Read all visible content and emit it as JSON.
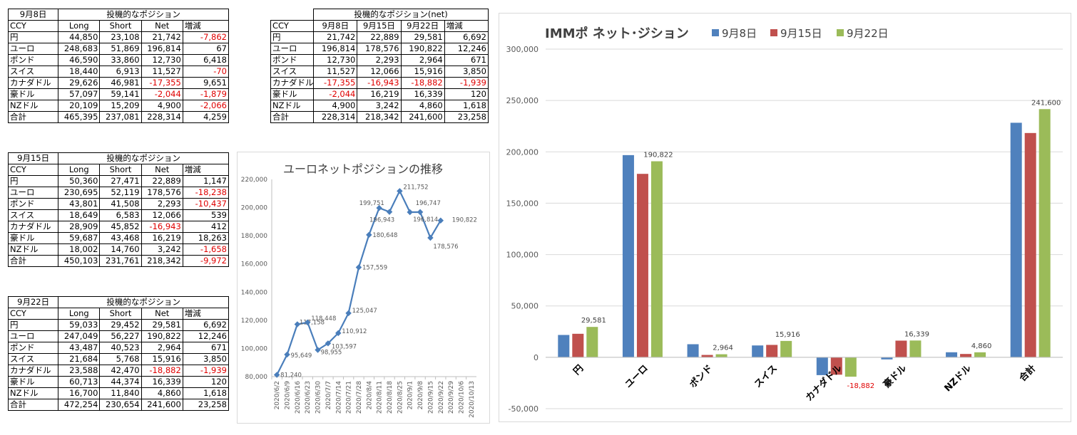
{
  "tables": {
    "sep8": {
      "date": "9月8日",
      "title": "投機的なポジション",
      "headers": [
        "CCY",
        "Long",
        "Short",
        "Net",
        "増減"
      ],
      "rows": [
        [
          "円",
          "44,850",
          "23,108",
          "21,742",
          "-7,862"
        ],
        [
          "ユーロ",
          "248,683",
          "51,869",
          "196,814",
          "67"
        ],
        [
          "ポンド",
          "46,590",
          "33,860",
          "12,730",
          "6,418"
        ],
        [
          "スイス",
          "18,440",
          "6,913",
          "11,527",
          "-70"
        ],
        [
          "カナダドル",
          "29,626",
          "46,981",
          "-17,355",
          "9,651"
        ],
        [
          "豪ドル",
          "57,097",
          "59,141",
          "-2,044",
          "-1,879"
        ],
        [
          "NZドル",
          "20,109",
          "15,209",
          "4,900",
          "-2,066"
        ],
        [
          "合計",
          "465,395",
          "237,081",
          "228,314",
          "4,259"
        ]
      ]
    },
    "sep15": {
      "date": "9月15日",
      "title": "投機的なポジション",
      "headers": [
        "CCY",
        "Long",
        "Short",
        "Net",
        "増減"
      ],
      "rows": [
        [
          "円",
          "50,360",
          "27,471",
          "22,889",
          "1,147"
        ],
        [
          "ユーロ",
          "230,695",
          "52,119",
          "178,576",
          "-18,238"
        ],
        [
          "ポンド",
          "43,801",
          "41,508",
          "2,293",
          "-10,437"
        ],
        [
          "スイス",
          "18,649",
          "6,583",
          "12,066",
          "539"
        ],
        [
          "カナダドル",
          "28,909",
          "45,852",
          "-16,943",
          "412"
        ],
        [
          "豪ドル",
          "59,687",
          "43,468",
          "16,219",
          "18,263"
        ],
        [
          "NZドル",
          "18,002",
          "14,760",
          "3,242",
          "-1,658"
        ],
        [
          "合計",
          "450,103",
          "231,761",
          "218,342",
          "-9,972"
        ]
      ]
    },
    "sep22": {
      "date": "9月22日",
      "title": "投機的なポジション",
      "headers": [
        "CCY",
        "Long",
        "Short",
        "Net",
        "増減"
      ],
      "rows": [
        [
          "円",
          "59,033",
          "29,452",
          "29,581",
          "6,692"
        ],
        [
          "ユーロ",
          "247,049",
          "56,227",
          "190,822",
          "12,246"
        ],
        [
          "ポンド",
          "43,487",
          "40,523",
          "2,964",
          "671"
        ],
        [
          "スイス",
          "21,684",
          "5,768",
          "15,916",
          "3,850"
        ],
        [
          "カナダドル",
          "23,588",
          "42,470",
          "-18,882",
          "-1,939"
        ],
        [
          "豪ドル",
          "60,713",
          "44,374",
          "16,339",
          "120"
        ],
        [
          "NZドル",
          "16,700",
          "11,840",
          "4,860",
          "1,618"
        ],
        [
          "合計",
          "472,254",
          "230,654",
          "241,600",
          "23,258"
        ]
      ]
    },
    "net": {
      "title": "投機的なポジション(net)",
      "headers": [
        "CCY",
        "9月8日",
        "9月15日",
        "9月22日",
        "増減"
      ],
      "rows": [
        [
          "円",
          "21,742",
          "22,889",
          "29,581",
          "6,692"
        ],
        [
          "ユーロ",
          "196,814",
          "178,576",
          "190,822",
          "12,246"
        ],
        [
          "ポンド",
          "12,730",
          "2,293",
          "2,964",
          "671"
        ],
        [
          "スイス",
          "11,527",
          "12,066",
          "15,916",
          "3,850"
        ],
        [
          "カナダドル",
          "-17,355",
          "-16,943",
          "-18,882",
          "-1,939"
        ],
        [
          "豪ドル",
          "-2,044",
          "16,219",
          "16,339",
          "120"
        ],
        [
          "NZドル",
          "4,900",
          "3,242",
          "4,860",
          "1,618"
        ],
        [
          "合計",
          "228,314",
          "218,342",
          "241,600",
          "23,258"
        ]
      ]
    }
  },
  "chart_data": [
    {
      "type": "line",
      "title": "ユーロネットポジションの推移",
      "x": [
        "2020/6/2",
        "2020/6/9",
        "2020/6/16",
        "2020/6/23",
        "2020/6/30",
        "2020/7/7",
        "2020/7/14",
        "2020/7/21",
        "2020/7/28",
        "2020/8/4",
        "2020/8/11",
        "2020/8/18",
        "2020/8/25",
        "2020/9/1",
        "2020/9/8",
        "2020/9/15",
        "2020/9/22",
        "2020/9/29",
        "2020/10/6",
        "2020/10/13"
      ],
      "values": [
        81240,
        95649,
        117158,
        118448,
        98955,
        103597,
        110912,
        125047,
        157559,
        180648,
        199751,
        196943,
        211752,
        196747,
        196814,
        178576,
        190822,
        null,
        null,
        null
      ],
      "data_labels": [
        "81,240",
        "95,649",
        "117,158",
        "118,448",
        "98,955",
        "103,597",
        "110,912",
        "125,047",
        "157,559",
        "180,648",
        "199,751",
        "196,943",
        "211,752",
        "196,747",
        "196,814",
        "178,576",
        "190,822",
        "",
        "",
        ""
      ],
      "yticks": [
        "80,000",
        "100,000",
        "120,000",
        "140,000",
        "160,000",
        "180,000",
        "200,000",
        "220,000"
      ],
      "ylim": [
        80000,
        220000
      ],
      "color": "#4a7ebb"
    },
    {
      "type": "bar",
      "title": "IMMポ ネット･ジション",
      "categories": [
        "円",
        "ユーロ",
        "ポンド",
        "スイス",
        "カナダドル",
        "豪ドル",
        "NZドル",
        "合計"
      ],
      "series": [
        {
          "name": "9月8日",
          "color": "#4f81bd",
          "values": [
            21742,
            196814,
            12730,
            11527,
            -17355,
            -2044,
            4900,
            228314
          ]
        },
        {
          "name": "9月15日",
          "color": "#c0504d",
          "values": [
            22889,
            178576,
            2293,
            12066,
            -16943,
            16219,
            3242,
            218342
          ]
        },
        {
          "name": "9月22日",
          "color": "#9bbb59",
          "values": [
            29581,
            190822,
            2964,
            15916,
            -18882,
            16339,
            4860,
            241600
          ]
        }
      ],
      "data_labels": [
        "29,581",
        "190,822",
        "2,964",
        "15,916",
        "-18,882",
        "16,339",
        "4,860",
        "241,600"
      ],
      "yticks": [
        "-50,000",
        "0",
        "50,000",
        "100,000",
        "150,000",
        "200,000",
        "250,000",
        "300,000"
      ],
      "ylim": [
        -50000,
        300000
      ],
      "legend": "top"
    }
  ]
}
